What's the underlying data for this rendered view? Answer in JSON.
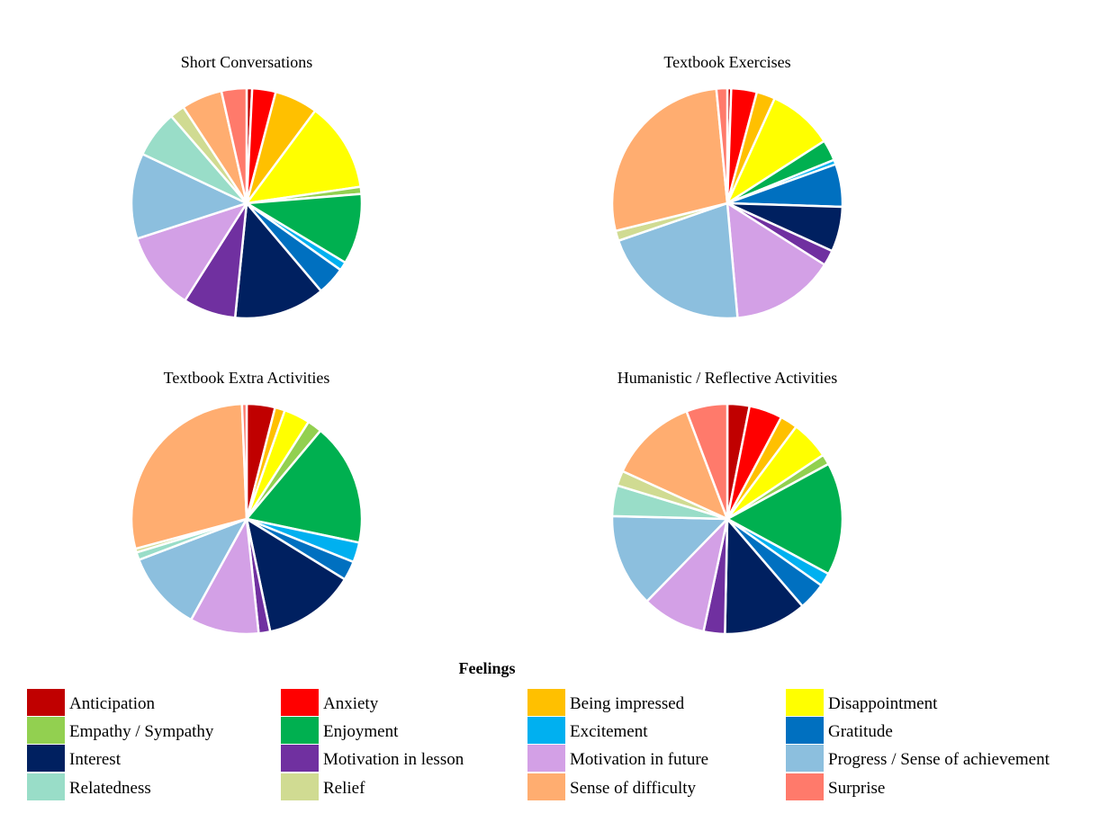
{
  "legend": {
    "title": "Feelings",
    "items": [
      {
        "label": "Anticipation",
        "color": "#C00000"
      },
      {
        "label": "Anxiety",
        "color": "#FF0000"
      },
      {
        "label": "Being impressed",
        "color": "#FFC000"
      },
      {
        "label": "Disappointment",
        "color": "#FFFF00"
      },
      {
        "label": "Empathy / Sympathy",
        "color": "#92D050"
      },
      {
        "label": "Enjoyment",
        "color": "#00B050"
      },
      {
        "label": "Excitement",
        "color": "#00B0F0"
      },
      {
        "label": "Gratitude",
        "color": "#0070C0"
      },
      {
        "label": "Interest",
        "color": "#002060"
      },
      {
        "label": "Motivation in lesson",
        "color": "#7030A0"
      },
      {
        "label": "Motivation in future",
        "color": "#D3A0E6"
      },
      {
        "label": "Progress / Sense of achievement",
        "color": "#8CBFDE"
      },
      {
        "label": "Relatedness",
        "color": "#99DDC8"
      },
      {
        "label": "Relief",
        "color": "#D0DB92"
      },
      {
        "label": "Sense of difficulty",
        "color": "#FFAD70"
      },
      {
        "label": "Surprise",
        "color": "#FF7A6B"
      }
    ]
  },
  "chart_data": [
    {
      "type": "pie",
      "title": "Short Conversations",
      "categories": [
        "Anticipation",
        "Anxiety",
        "Being impressed",
        "Disappointment",
        "Empathy / Sympathy",
        "Enjoyment",
        "Excitement",
        "Gratitude",
        "Interest",
        "Motivation in lesson",
        "Motivation in future",
        "Progress / Sense of achievement",
        "Relatedness",
        "Relief",
        "Sense of difficulty",
        "Surprise"
      ],
      "values": [
        0.7,
        3.0,
        5.5,
        11.4,
        0.9,
        9.0,
        1.1,
        3.6,
        11.6,
        6.7,
        10.0,
        10.9,
        6.0,
        1.9,
        5.2,
        3.2
      ]
    },
    {
      "type": "pie",
      "title": "Textbook Exercises",
      "categories": [
        "Anticipation",
        "Anxiety",
        "Being impressed",
        "Disappointment",
        "Empathy / Sympathy",
        "Enjoyment",
        "Excitement",
        "Gratitude",
        "Interest",
        "Motivation in lesson",
        "Motivation in future",
        "Progress / Sense of achievement",
        "Relatedness",
        "Relief",
        "Sense of difficulty",
        "Surprise"
      ],
      "values": [
        0.5,
        3.3,
        2.4,
        8.4,
        0.0,
        2.7,
        0.6,
        5.5,
        5.8,
        2.0,
        13.4,
        19.4,
        0.0,
        1.3,
        25.1,
        1.4
      ]
    },
    {
      "type": "pie",
      "title": "Textbook Extra Activities",
      "categories": [
        "Anticipation",
        "Anxiety",
        "Being impressed",
        "Disappointment",
        "Empathy / Sympathy",
        "Enjoyment",
        "Excitement",
        "Gratitude",
        "Interest",
        "Motivation in lesson",
        "Motivation in future",
        "Progress / Sense of achievement",
        "Relatedness",
        "Relief",
        "Sense of difficulty",
        "Surprise"
      ],
      "values": [
        3.7,
        0.0,
        1.3,
        3.4,
        1.9,
        16.0,
        2.6,
        2.5,
        12.0,
        1.5,
        9.0,
        10.4,
        1.0,
        0.5,
        26.5,
        0.6
      ]
    },
    {
      "type": "pie",
      "title": "Humanistic / Reflective Activities",
      "categories": [
        "Anticipation",
        "Anxiety",
        "Being impressed",
        "Disappointment",
        "Empathy / Sympathy",
        "Enjoyment",
        "Excitement",
        "Gratitude",
        "Interest",
        "Motivation in lesson",
        "Motivation in future",
        "Progress / Sense of achievement",
        "Relatedness",
        "Relief",
        "Sense of difficulty",
        "Surprise"
      ],
      "values": [
        2.8,
        4.2,
        2.2,
        4.9,
        1.3,
        14.3,
        1.7,
        3.5,
        10.5,
        2.7,
        8.1,
        11.8,
        3.9,
        1.9,
        11.2,
        5.2
      ]
    }
  ]
}
